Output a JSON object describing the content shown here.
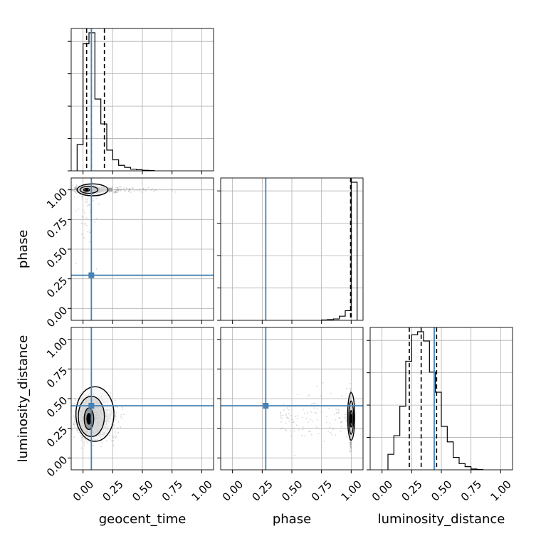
{
  "chart_data": {
    "type": "corner",
    "parameters": [
      {
        "name": "geocent_time",
        "label": "geocent_time",
        "range": [
          -0.1,
          1.1
        ],
        "truth": 0.07,
        "quantiles": [
          0.03,
          0.07,
          0.18
        ]
      },
      {
        "name": "phase",
        "label": "phase",
        "range": [
          -0.1,
          1.1
        ],
        "truth": 0.28,
        "quantiles": [
          0.995,
          1.0,
          1.0
        ]
      },
      {
        "name": "luminosity_distance",
        "label": "luminosity_distance",
        "range": [
          -0.1,
          1.1
        ],
        "truth": 0.44,
        "quantiles": [
          0.23,
          0.33,
          0.46
        ]
      }
    ],
    "ticks": [
      0.0,
      0.25,
      0.5,
      0.75,
      1.0
    ],
    "tick_labels": [
      "0.00",
      "0.25",
      "0.50",
      "0.75",
      "1.00"
    ],
    "histograms": [
      {
        "param": "geocent_time",
        "bin_edges": [
          -0.05,
          0.0,
          0.05,
          0.1,
          0.15,
          0.2,
          0.25,
          0.3,
          0.35,
          0.4,
          0.45,
          0.5,
          0.55,
          0.6
        ],
        "counts": [
          0.19,
          0.92,
          1.0,
          0.52,
          0.34,
          0.15,
          0.08,
          0.04,
          0.025,
          0.012,
          0.008,
          0.004,
          0.002
        ]
      },
      {
        "param": "phase",
        "bin_edges": [
          0.75,
          0.8,
          0.85,
          0.9,
          0.95,
          1.0,
          1.05
        ],
        "counts": [
          0.003,
          0.005,
          0.01,
          0.03,
          0.07,
          1.0
        ]
      },
      {
        "param": "luminosity_distance",
        "bin_edges": [
          0.05,
          0.1,
          0.15,
          0.2,
          0.25,
          0.3,
          0.35,
          0.4,
          0.45,
          0.5,
          0.55,
          0.6,
          0.65,
          0.7,
          0.75,
          0.8,
          0.85
        ],
        "counts": [
          0.1,
          0.22,
          0.41,
          0.7,
          0.87,
          0.89,
          0.83,
          0.63,
          0.5,
          0.28,
          0.18,
          0.08,
          0.04,
          0.02,
          0.005,
          0.002
        ]
      }
    ],
    "pairs": [
      {
        "x": "geocent_time",
        "y": "phase",
        "blob": {
          "x_center": 0.03,
          "y_center": 1.0,
          "x_spread": 0.07,
          "y_spread": 0.012,
          "tail_x_max": 0.5
        },
        "contours": [
          {
            "cx": 0.03,
            "cy": 1.0,
            "rx": 0.025,
            "ry": 0.012
          },
          {
            "cx": 0.05,
            "cy": 1.0,
            "rx": 0.075,
            "ry": 0.03
          },
          {
            "cx": 0.08,
            "cy": 1.0,
            "rx": 0.13,
            "ry": 0.05
          }
        ]
      },
      {
        "x": "geocent_time",
        "y": "luminosity_distance",
        "blob": {
          "x_center": 0.06,
          "y_center": 0.33,
          "x_spread": 0.06,
          "y_spread": 0.08
        },
        "contours": [
          {
            "cx": 0.05,
            "cy": 0.33,
            "rx": 0.04,
            "ry": 0.09
          },
          {
            "cx": 0.07,
            "cy": 0.35,
            "rx": 0.11,
            "ry": 0.17
          },
          {
            "cx": 0.1,
            "cy": 0.37,
            "rx": 0.16,
            "ry": 0.23
          }
        ]
      },
      {
        "x": "phase",
        "y": "luminosity_distance",
        "blob": {
          "x_center": 1.0,
          "y_center": 0.33,
          "x_spread": 0.006,
          "y_spread": 0.09
        },
        "contours": [
          {
            "cx": 1.0,
            "cy": 0.33,
            "rx": 0.01,
            "ry": 0.07
          },
          {
            "cx": 1.0,
            "cy": 0.34,
            "rx": 0.02,
            "ry": 0.14
          },
          {
            "cx": 1.0,
            "cy": 0.35,
            "rx": 0.03,
            "ry": 0.2
          }
        ]
      }
    ],
    "truth_color": "#4682b4",
    "sample_color": "#888888",
    "line_color": "#000000",
    "grid": true
  }
}
